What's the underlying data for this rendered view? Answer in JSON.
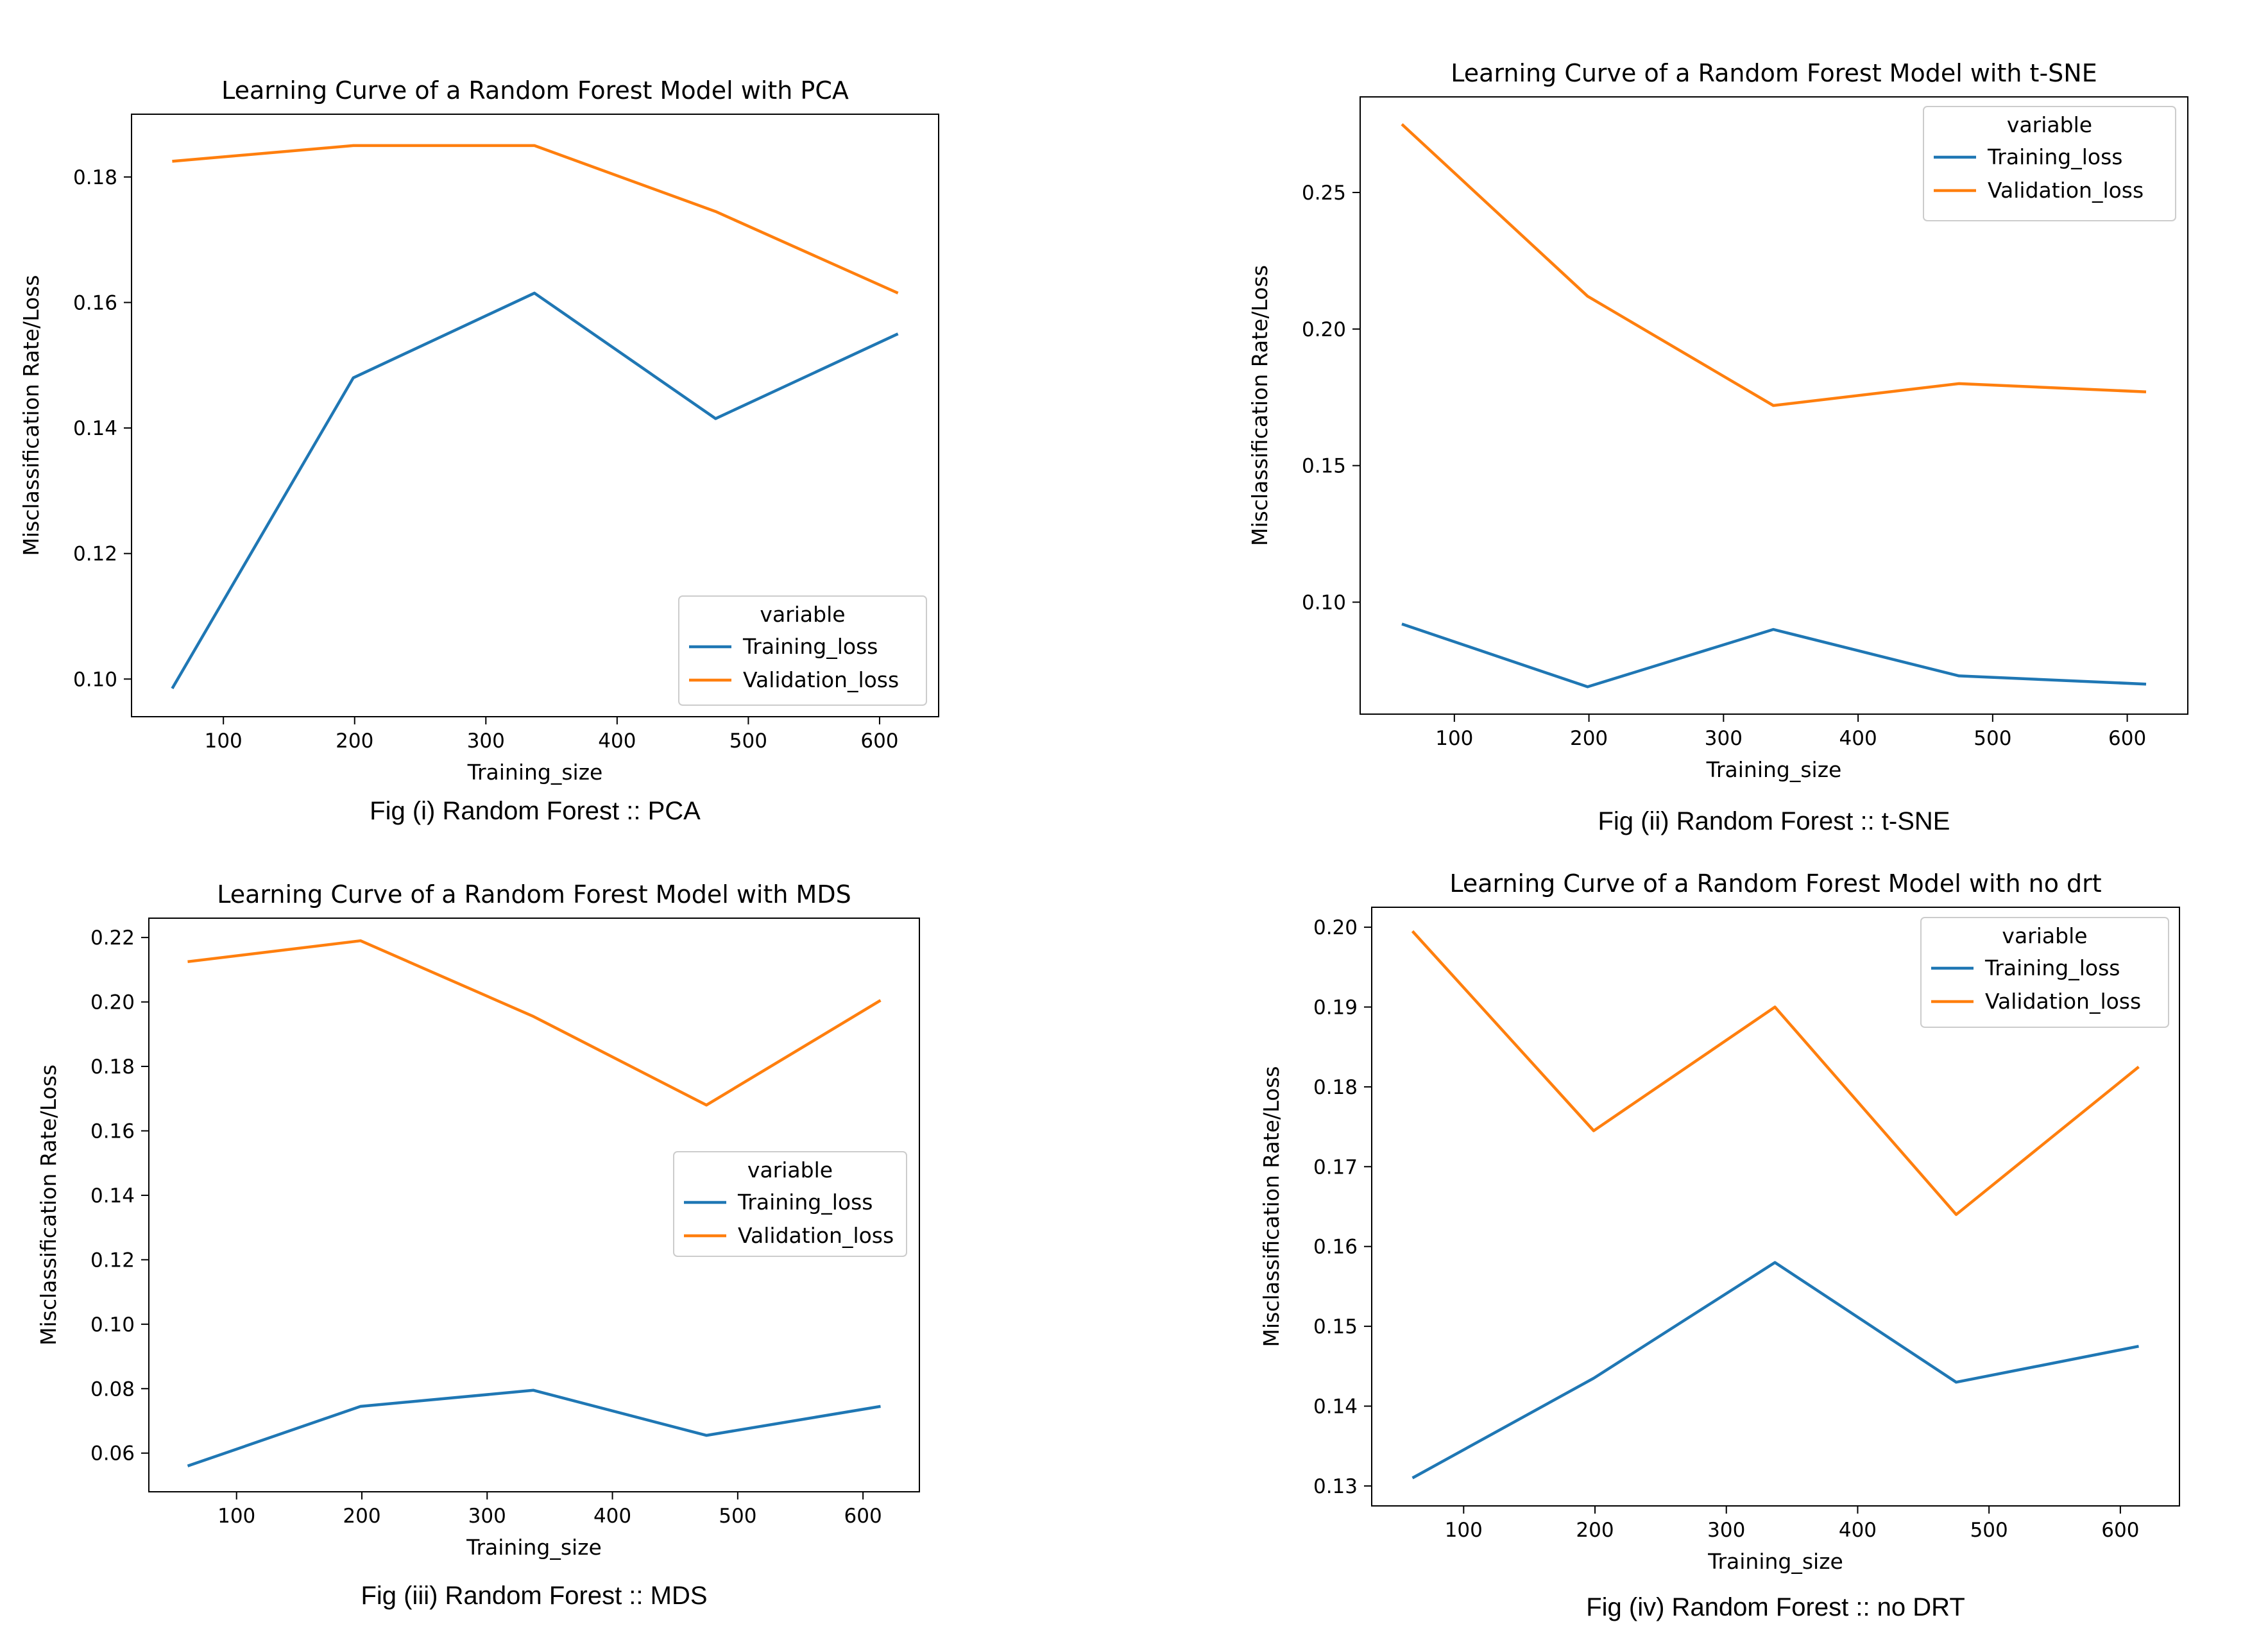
{
  "chart_data": [
    {
      "type": "line",
      "title": "Learning Curve of a Random Forest Model with PCA",
      "xlabel": "Training_size",
      "ylabel": "Misclassification Rate/Loss",
      "caption": "Fig (i) Random Forest :: PCA",
      "xlim": [
        30,
        645
      ],
      "ylim": [
        0.094,
        0.19
      ],
      "xticks": [
        100,
        200,
        300,
        400,
        500,
        600
      ],
      "yticks": [
        0.1,
        0.12,
        0.14,
        0.16,
        0.18
      ],
      "ytick_labels": [
        "0.10",
        "0.12",
        "0.14",
        "0.16",
        "0.18"
      ],
      "legend": {
        "title": "variable",
        "position": "lower-right"
      },
      "x": [
        61,
        199,
        337,
        475,
        614
      ],
      "series": [
        {
          "name": "Training_loss",
          "color": "#1f77b4",
          "values": [
            0.0985,
            0.148,
            0.1615,
            0.1415,
            0.155
          ]
        },
        {
          "name": "Validation_loss",
          "color": "#ff7f0e",
          "values": [
            0.1825,
            0.185,
            0.185,
            0.1745,
            0.1615
          ]
        }
      ]
    },
    {
      "type": "line",
      "title": "Learning Curve of a Random Forest Model with t-SNE",
      "xlabel": "Training_size",
      "ylabel": "Misclassification Rate/Loss",
      "caption": "Fig (ii) Random Forest :: t-SNE",
      "xlim": [
        30,
        645
      ],
      "ylim": [
        0.059,
        0.285
      ],
      "xticks": [
        100,
        200,
        300,
        400,
        500,
        600
      ],
      "yticks": [
        0.1,
        0.15,
        0.2,
        0.25
      ],
      "ytick_labels": [
        "0.10",
        "0.15",
        "0.20",
        "0.25"
      ],
      "legend": {
        "title": "variable",
        "position": "upper-right"
      },
      "x": [
        61,
        199,
        337,
        475,
        614
      ],
      "series": [
        {
          "name": "Training_loss",
          "color": "#1f77b4",
          "values": [
            0.092,
            0.069,
            0.09,
            0.073,
            0.07
          ]
        },
        {
          "name": "Validation_loss",
          "color": "#ff7f0e",
          "values": [
            0.275,
            0.212,
            0.172,
            0.18,
            0.177
          ]
        }
      ]
    },
    {
      "type": "line",
      "title": "Learning Curve of a Random Forest Model with MDS",
      "xlabel": "Training_size",
      "ylabel": "Misclassification Rate/Loss",
      "caption": "Fig (iii) Random Forest :: MDS",
      "xlim": [
        30,
        645
      ],
      "ylim": [
        0.048,
        0.226
      ],
      "xticks": [
        100,
        200,
        300,
        400,
        500,
        600
      ],
      "yticks": [
        0.06,
        0.08,
        0.1,
        0.12,
        0.14,
        0.16,
        0.18,
        0.2,
        0.22
      ],
      "ytick_labels": [
        "0.06",
        "0.08",
        "0.10",
        "0.12",
        "0.14",
        "0.16",
        "0.18",
        "0.20",
        "0.22"
      ],
      "legend": {
        "title": "variable",
        "position": "center-right"
      },
      "x": [
        61,
        199,
        337,
        475,
        614
      ],
      "series": [
        {
          "name": "Training_loss",
          "color": "#1f77b4",
          "values": [
            0.056,
            0.0745,
            0.0795,
            0.0655,
            0.0745
          ]
        },
        {
          "name": "Validation_loss",
          "color": "#ff7f0e",
          "values": [
            0.2125,
            0.219,
            0.1955,
            0.168,
            0.2005
          ]
        }
      ]
    },
    {
      "type": "line",
      "title": "Learning Curve of a Random Forest Model with no drt",
      "xlabel": "Training_size",
      "ylabel": "Misclassification Rate/Loss",
      "caption": "Fig (iv) Random Forest :: no DRT",
      "xlim": [
        30,
        645
      ],
      "ylim": [
        0.1275,
        0.2025
      ],
      "xticks": [
        100,
        200,
        300,
        400,
        500,
        600
      ],
      "yticks": [
        0.13,
        0.14,
        0.15,
        0.16,
        0.17,
        0.18,
        0.19,
        0.2
      ],
      "ytick_labels": [
        "0.13",
        "0.14",
        "0.15",
        "0.16",
        "0.17",
        "0.18",
        "0.19",
        "0.20"
      ],
      "legend": {
        "title": "variable",
        "position": "upper-right"
      },
      "x": [
        61,
        199,
        337,
        475,
        614
      ],
      "series": [
        {
          "name": "Training_loss",
          "color": "#1f77b4",
          "values": [
            0.131,
            0.1435,
            0.158,
            0.143,
            0.1475
          ]
        },
        {
          "name": "Validation_loss",
          "color": "#ff7f0e",
          "values": [
            0.1995,
            0.1745,
            0.19,
            0.164,
            0.1825
          ]
        }
      ]
    }
  ]
}
